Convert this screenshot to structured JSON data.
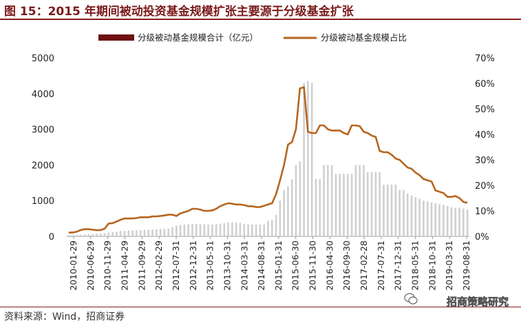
{
  "title": "图 15：2015 年期间被动投资基金规模扩张主要源于分级基金扩张",
  "source": "资料来源：Wind，招商证券",
  "watermark": "招商策略研究",
  "colors": {
    "title": "#7a1a1a",
    "bar": "#cfcfcf",
    "line": "#b5651d",
    "legend_bar": "#6e1010",
    "rule": "#8a1c1c"
  },
  "chart_data": {
    "type": "bar",
    "legend_position": "top-center",
    "grid": false,
    "y_left": {
      "lim": [
        0,
        5000
      ],
      "ticks": [
        "0",
        "1000",
        "2000",
        "3000",
        "4000",
        "5000"
      ]
    },
    "y_right": {
      "lim": [
        0,
        70
      ],
      "ticks": [
        "0%",
        "10%",
        "20%",
        "30%",
        "40%",
        "50%",
        "60%",
        "70%"
      ]
    },
    "x_tick_labels": [
      "2010-01-29",
      "2010-06-29",
      "2010-11-29",
      "2011-04-29",
      "2011-09-29",
      "2012-02-29",
      "2012-07-31",
      "2012-12-31",
      "2013-05-31",
      "2013-10-31",
      "2014-03-31",
      "2014-08-31",
      "2015-01-31",
      "2015-06-30",
      "2015-11-30",
      "2016-04-30",
      "2016-09-30",
      "2017-02-28",
      "2017-07-31",
      "2017-12-31",
      "2018-05-31",
      "2018-10-31",
      "2019-03-31",
      "2019-08-31"
    ],
    "series": [
      {
        "name": "分级被动基金规模合计（亿元）",
        "type": "bar",
        "axis": "left",
        "values": [
          30,
          35,
          40,
          45,
          55,
          60,
          65,
          70,
          80,
          90,
          110,
          120,
          130,
          150,
          150,
          160,
          170,
          170,
          170,
          180,
          180,
          190,
          200,
          210,
          210,
          220,
          260,
          300,
          320,
          330,
          340,
          340,
          350,
          350,
          340,
          330,
          330,
          340,
          350,
          370,
          390,
          390,
          390,
          380,
          350,
          340,
          330,
          330,
          330,
          330,
          440,
          460,
          600,
          1000,
          1300,
          1400,
          1600,
          2000,
          2100,
          4300,
          4350,
          4300,
          1600,
          1600,
          2000,
          2000,
          2000,
          1750,
          1750,
          1750,
          1750,
          1750,
          2000,
          2000,
          2000,
          1800,
          1800,
          1800,
          1800,
          1450,
          1450,
          1450,
          1450,
          1300,
          1300,
          1200,
          1150,
          1100,
          1050,
          1000,
          980,
          950,
          930,
          900,
          880,
          850,
          820,
          800,
          800,
          780,
          750
        ]
      },
      {
        "name": "分级被动基金规模占比",
        "type": "line",
        "axis": "right",
        "values": [
          1.5,
          1.5,
          1.8,
          2.5,
          2.8,
          2.8,
          2.6,
          2.4,
          2.5,
          3.0,
          5.0,
          5.2,
          5.8,
          6.5,
          7.0,
          7.0,
          7.0,
          7.2,
          7.5,
          7.5,
          7.5,
          7.8,
          7.8,
          8.0,
          8.2,
          8.5,
          8.5,
          8.0,
          9.0,
          9.5,
          10.0,
          10.8,
          10.8,
          10.5,
          10.0,
          10.0,
          10.2,
          10.8,
          11.8,
          12.5,
          13.0,
          12.8,
          12.5,
          12.5,
          12.3,
          11.8,
          11.8,
          11.5,
          11.5,
          12.0,
          12.5,
          13.0,
          16.5,
          22.0,
          28.0,
          36.0,
          37.0,
          42.0,
          58.0,
          58.5,
          41.0,
          40.5,
          40.5,
          43.5,
          43.5,
          42.0,
          41.5,
          41.5,
          41.5,
          40.5,
          40.0,
          43.5,
          43.5,
          43.2,
          41.0,
          40.5,
          39.5,
          39.0,
          33.5,
          33.0,
          33.0,
          32.0,
          30.5,
          30.0,
          28.5,
          27.0,
          26.5,
          25.0,
          24.0,
          22.5,
          22.0,
          21.5,
          18.0,
          17.5,
          17.0,
          15.5,
          15.5,
          15.8,
          15.0,
          13.5,
          13.2
        ]
      }
    ]
  }
}
